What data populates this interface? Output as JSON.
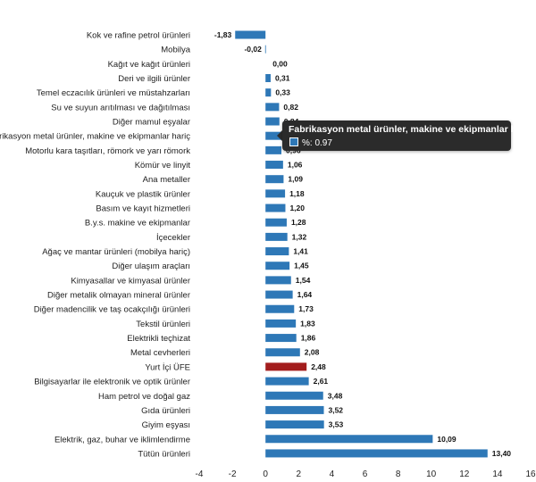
{
  "chart_data": {
    "type": "bar",
    "orientation": "horizontal",
    "categories": [
      "Kok ve rafine petrol ürünleri",
      "Mobilya",
      "Kağıt ve kağıt ürünleri",
      "Deri ve ilgili ürünler",
      "Temel eczacılık ürünleri ve müstahzarları",
      "Su ve suyun arıtılması ve dağıtılması",
      "Diğer mamul eşyalar",
      "Fabrikasyon metal ürünler, makine ve ekipmanlar hariç",
      "Motorlu kara taşıtları, römork ve yarı römork",
      "Kömür ve linyit",
      "Ana metaller",
      "Kauçuk ve plastik ürünler",
      "Basım ve kayıt hizmetleri",
      "B.y.s. makine ve ekipmanlar",
      "İçecekler",
      "Ağaç ve mantar ürünleri (mobilya hariç)",
      "Diğer ulaşım araçları",
      "Kimyasallar ve kimyasal ürünler",
      "Diğer metalik olmayan mineral ürünler",
      "Diğer madencilik ve taş ocakçılığı ürünleri",
      "Tekstil ürünleri",
      "Elektrikli teçhizat",
      "Metal cevherleri",
      "Yurt İçi ÜFE",
      "Bilgisayarlar ile elektronik ve optik ürünler",
      "Ham petrol ve doğal gaz",
      "Gıda ürünleri",
      "Giyim eşyası",
      "Elektrik, gaz, buhar ve iklimlendirme",
      "Tütün ürünleri"
    ],
    "values": [
      -1.83,
      -0.02,
      0.0,
      0.31,
      0.33,
      0.82,
      0.84,
      0.97,
      0.96,
      1.06,
      1.09,
      1.18,
      1.2,
      1.28,
      1.32,
      1.41,
      1.45,
      1.54,
      1.64,
      1.73,
      1.83,
      1.86,
      2.08,
      2.48,
      2.61,
      3.48,
      3.52,
      3.53,
      10.09,
      13.4
    ],
    "value_labels": [
      "-1,83",
      "-0,02",
      "0,00",
      "0,31",
      "0,33",
      "0,82",
      "0,84",
      "0,97",
      "0,96",
      "1,06",
      "1,09",
      "1,18",
      "1,20",
      "1,28",
      "1,32",
      "1,41",
      "1,45",
      "1,54",
      "1,64",
      "1,73",
      "1,83",
      "1,86",
      "2,08",
      "2,48",
      "2,61",
      "3,48",
      "3,52",
      "3,53",
      "10,09",
      "13,40"
    ],
    "highlight_category": "Yurt İçi ÜFE",
    "xlim": [
      -4,
      16
    ],
    "xticks": [
      -4,
      -2,
      0,
      2,
      4,
      6,
      8,
      10,
      12,
      14,
      16
    ],
    "grid": false,
    "colors": {
      "bar": "#2e78b7",
      "highlight": "#a31d1d"
    }
  },
  "tooltip": {
    "title": "Fabrikasyon metal ürünler, makine ve ekipmanlar hariç",
    "series_label": "%: 0.97",
    "swatch_color": "#2e78b7"
  }
}
